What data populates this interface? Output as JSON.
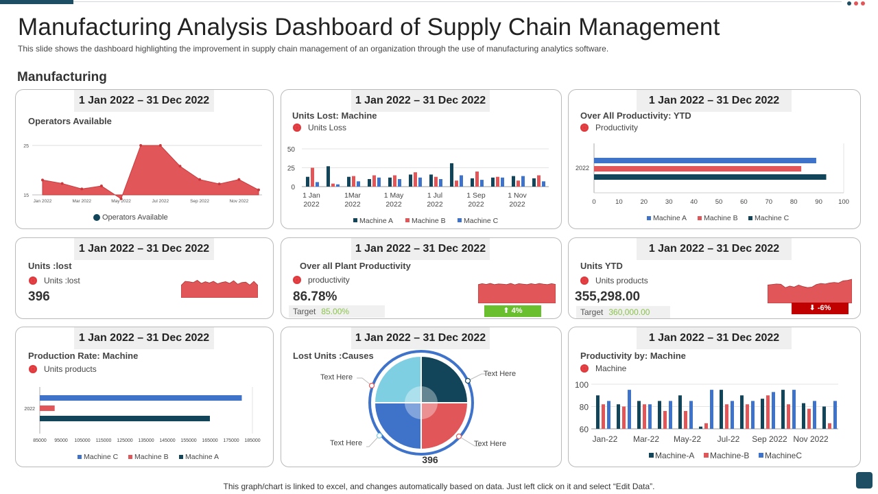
{
  "header": {
    "title": "Manufacturing Analysis Dashboard of Supply Chain Management",
    "subtitle": "This slide shows the dashboard highlighting the improvement in supply chain management of an organization  through the use of manufacturing analytics software.",
    "section": "Manufacturing"
  },
  "colors": {
    "accent": "#1d4e63",
    "red": "#e15759",
    "blue": "#3f73c9",
    "navy": "#124559",
    "green": "#6abf2e",
    "darkred": "#c00000"
  },
  "footer": "This graph/chart is linked to excel,  and changes automatically based on data. Just left click on it and select “Edit Data”.",
  "panels": {
    "p1": {
      "date": "1 Jan 2022 – 31 Dec 2022",
      "title": "Operators Available",
      "legend": "Operators Available"
    },
    "p2": {
      "date": "1 Jan 2022 – 31 Dec 2022",
      "title": "Units  Lost:  Machine",
      "legend": "Units Loss"
    },
    "p3": {
      "date": "1 Jan 2022 – 31 Dec 2022",
      "title": "Over All Productivity:  YTD",
      "legend": "Productivity"
    },
    "p4": {
      "date": "1 Jan 2022 – 31 Dec 2022",
      "title": "Units  :lost",
      "legend": "Units :lost",
      "value": "396"
    },
    "p5": {
      "date": "1 Jan 2022 – 31 Dec 2022",
      "title": "Over all Plant Productivity",
      "legend": "productivity",
      "value": "86.78%",
      "target_label": "Target",
      "target_value": "85.00%",
      "badge": "⬆ 4%"
    },
    "p6": {
      "date": "1 Jan 2022 – 31 Dec 2022",
      "title": "Units  YTD",
      "legend": "Units products",
      "value": "355,298.00",
      "target_label": "Target",
      "target_value": "360,000.00",
      "badge": "⬇ -6%"
    },
    "p7": {
      "date": "1 Jan 2022 – 31 Dec 2022",
      "title": "Production Rate: Machine",
      "legend": "Units products"
    },
    "p8": {
      "date": "1 Jan 2022 – 31 Dec 2022",
      "title": "Lost Units :Causes",
      "total": "396",
      "callouts": [
        "Text Here",
        "Text Here",
        "Text Here",
        "Text Here"
      ]
    },
    "p9": {
      "date": "1 Jan 2022 – 31 Dec 2022",
      "title": "Productivity by: Machine",
      "legend": "Machine"
    }
  },
  "chart_data": [
    {
      "id": "operators",
      "type": "area",
      "title": "Operators Available",
      "legend": [
        "Operators Available"
      ],
      "x": [
        "Jan 2022",
        "Feb 2022",
        "Mar 2022",
        "Apr 2022",
        "May 2022",
        "Jun 2022",
        "Jul 2022",
        "Aug 2022",
        "Sep 2022",
        "Oct 2022",
        "Nov 2022",
        "Dec 2022"
      ],
      "tick_labels": [
        "Jan 2022",
        "Mar 2022",
        "May 2022",
        "Jul 2022",
        "Sep 2022",
        "Nov 2022"
      ],
      "values": [
        18,
        17.3,
        16.2,
        16.8,
        14.2,
        25,
        25,
        20.8,
        18.1,
        17.2,
        18.1,
        16
      ],
      "ylim": [
        15,
        25
      ],
      "yticks": [
        "15",
        "25"
      ]
    },
    {
      "id": "units_lost_machine",
      "type": "bar",
      "title": "Units  Lost:  Machine",
      "categories": [
        "Jan",
        "Feb",
        "Mar",
        "Apr",
        "May",
        "Jun",
        "Jul",
        "Aug",
        "Sep",
        "Oct",
        "Nov",
        "Dec"
      ],
      "tick_labels": [
        "1 Jan|2022",
        "1Mar|2022",
        "1 May|2022",
        "1 Jul|2022",
        "1 Sep|2022",
        "1 Nov|2022"
      ],
      "series": [
        {
          "name": "Machine A",
          "color": "#124559",
          "values": [
            13,
            27,
            13,
            10,
            12,
            16,
            16,
            31,
            11,
            12,
            14,
            11
          ]
        },
        {
          "name": "Machine B",
          "color": "#e15759",
          "values": [
            25,
            4,
            14,
            15,
            15,
            19,
            13,
            8,
            20,
            13,
            8,
            15
          ]
        },
        {
          "name": "Machine C",
          "color": "#3f73c9",
          "values": [
            6,
            3,
            7,
            12,
            10,
            12,
            10,
            15,
            9,
            12,
            14,
            7
          ]
        }
      ],
      "ylim": [
        0,
        50
      ],
      "yticks": [
        "0",
        "25",
        "50"
      ]
    },
    {
      "id": "overall_productivity_ytd",
      "type": "bar",
      "orientation": "horizontal",
      "title": "Over All Productivity:  YTD",
      "categories": [
        "2022"
      ],
      "series": [
        {
          "name": "Machine A",
          "color": "#3f73c9",
          "values": [
            89
          ]
        },
        {
          "name": "Machine B",
          "color": "#e15759",
          "values": [
            83
          ]
        },
        {
          "name": "Machine C",
          "color": "#124559",
          "values": [
            93
          ]
        }
      ],
      "xlim": [
        0,
        100
      ],
      "xticks": [
        "0",
        "10",
        "20",
        "30",
        "40",
        "50",
        "60",
        "70",
        "80",
        "90",
        "100"
      ]
    },
    {
      "id": "units_lost_spark",
      "type": "area",
      "title": "Units  :lost",
      "values": [
        60,
        80,
        78,
        74,
        85,
        70,
        78,
        72,
        80,
        68,
        74,
        78,
        70,
        83,
        66,
        74,
        76,
        62,
        80,
        60
      ]
    },
    {
      "id": "plant_productivity_spark",
      "type": "area",
      "title": "Over all Plant Productivity",
      "values": [
        80,
        84,
        81,
        85,
        80,
        83,
        82,
        80,
        85,
        79,
        84,
        82,
        80,
        84,
        81,
        85,
        82,
        80,
        84,
        81
      ]
    },
    {
      "id": "units_ytd_spark",
      "type": "area",
      "title": "Units  YTD",
      "values": [
        70,
        72,
        74,
        73,
        60,
        66,
        62,
        70,
        64,
        60,
        62,
        72,
        76,
        74,
        78,
        80,
        78,
        86,
        88,
        92
      ]
    },
    {
      "id": "production_rate_machine",
      "type": "bar",
      "orientation": "horizontal",
      "title": "Production Rate: Machine",
      "categories": [
        "2022"
      ],
      "series": [
        {
          "name": "Machine C",
          "color": "#3f73c9",
          "values": [
            180000
          ]
        },
        {
          "name": "Machine B",
          "color": "#e15759",
          "values": [
            92000
          ]
        },
        {
          "name": "Machine A",
          "color": "#124559",
          "values": [
            165000
          ]
        }
      ],
      "xlim": [
        85000,
        185000
      ],
      "xticks": [
        "85000",
        "95000",
        "105000",
        "115000",
        "125000",
        "135000",
        "145000",
        "155000",
        "165000",
        "175000",
        "185000"
      ]
    },
    {
      "id": "lost_units_causes",
      "type": "pie",
      "title": "Lost Units :Causes",
      "total": 396,
      "labels": [
        "Text Here",
        "Text Here",
        "Text Here",
        "Text Here"
      ],
      "values": [
        25,
        25,
        25,
        25
      ],
      "colors": [
        "#124559",
        "#e15759",
        "#3f73c9",
        "#7fcfe2"
      ]
    },
    {
      "id": "productivity_by_machine",
      "type": "bar",
      "title": "Productivity by: Machine",
      "categories": [
        "Jan-22",
        "Feb-22",
        "Mar-22",
        "Apr-22",
        "May-22",
        "Jun-22",
        "Jul-22",
        "Aug-22",
        "Sep-22",
        "Oct-22",
        "Nov-22",
        "Dec-22"
      ],
      "tick_labels": [
        "Jan-22",
        "Mar-22",
        "May-22",
        "Jul-22",
        "Sep 2022",
        "Nov 2022"
      ],
      "series": [
        {
          "name": "Machine-A",
          "color": "#124559",
          "values": [
            90,
            82,
            85,
            85,
            90,
            62,
            95,
            90,
            87,
            95,
            83,
            80
          ]
        },
        {
          "name": "Machine-B",
          "color": "#e15759",
          "values": [
            82,
            80,
            82,
            76,
            76,
            65,
            82,
            82,
            90,
            82,
            78,
            65
          ]
        },
        {
          "name": "MachineC",
          "color": "#3f73c9",
          "values": [
            85,
            95,
            82,
            85,
            85,
            95,
            85,
            85,
            93,
            95,
            85,
            85
          ]
        }
      ],
      "ylim": [
        60,
        100
      ],
      "yticks": [
        "60",
        "80",
        "100"
      ]
    }
  ]
}
